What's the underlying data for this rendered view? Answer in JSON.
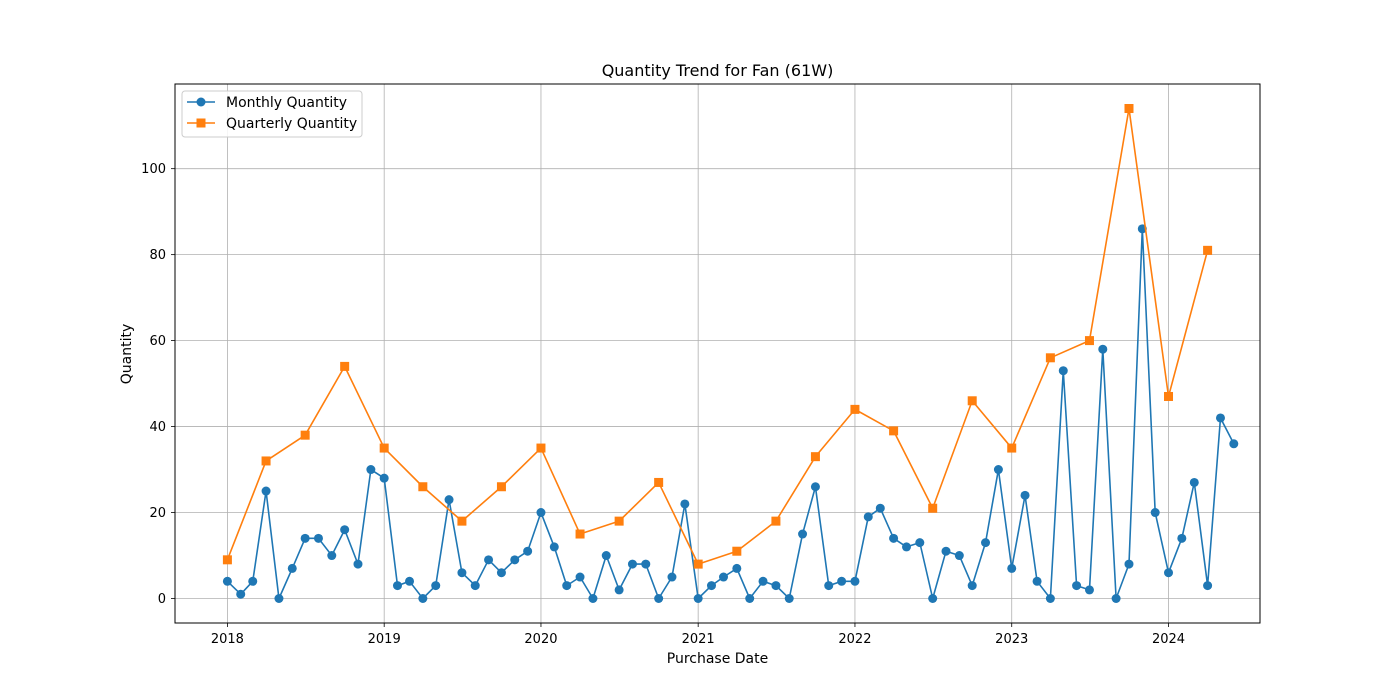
{
  "chart_data": {
    "type": "line",
    "title": "Quantity Trend for Fan (61W)",
    "xlabel": "Purchase Date",
    "ylabel": "Quantity",
    "xlim": [
      "2017-09-01",
      "2024-08-01"
    ],
    "ylim": [
      -5.7,
      119.7
    ],
    "x_ticks": [
      "2018",
      "2019",
      "2020",
      "2021",
      "2022",
      "2023",
      "2024"
    ],
    "y_ticks": [
      "0",
      "20",
      "40",
      "60",
      "80",
      "100"
    ],
    "grid": true,
    "legend_position": "top-left",
    "series": [
      {
        "name": "Monthly Quantity",
        "color": "#1f77b4",
        "marker": "circle",
        "points": [
          [
            "2018-01-01",
            4
          ],
          [
            "2018-02-01",
            1
          ],
          [
            "2018-03-01",
            4
          ],
          [
            "2018-04-01",
            25
          ],
          [
            "2018-05-01",
            0
          ],
          [
            "2018-06-01",
            7
          ],
          [
            "2018-07-01",
            14
          ],
          [
            "2018-08-01",
            14
          ],
          [
            "2018-09-01",
            10
          ],
          [
            "2018-10-01",
            16
          ],
          [
            "2018-11-01",
            8
          ],
          [
            "2018-12-01",
            30
          ],
          [
            "2019-01-01",
            28
          ],
          [
            "2019-02-01",
            3
          ],
          [
            "2019-03-01",
            4
          ],
          [
            "2019-04-01",
            0
          ],
          [
            "2019-05-01",
            3
          ],
          [
            "2019-06-01",
            23
          ],
          [
            "2019-07-01",
            6
          ],
          [
            "2019-08-01",
            3
          ],
          [
            "2019-09-01",
            9
          ],
          [
            "2019-10-01",
            6
          ],
          [
            "2019-11-01",
            9
          ],
          [
            "2019-12-01",
            11
          ],
          [
            "2020-01-01",
            20
          ],
          [
            "2020-02-01",
            12
          ],
          [
            "2020-03-01",
            3
          ],
          [
            "2020-04-01",
            5
          ],
          [
            "2020-05-01",
            0
          ],
          [
            "2020-06-01",
            10
          ],
          [
            "2020-07-01",
            2
          ],
          [
            "2020-08-01",
            8
          ],
          [
            "2020-09-01",
            8
          ],
          [
            "2020-10-01",
            0
          ],
          [
            "2020-11-01",
            5
          ],
          [
            "2020-12-01",
            22
          ],
          [
            "2021-01-01",
            0
          ],
          [
            "2021-02-01",
            3
          ],
          [
            "2021-03-01",
            5
          ],
          [
            "2021-04-01",
            7
          ],
          [
            "2021-05-01",
            0
          ],
          [
            "2021-06-01",
            4
          ],
          [
            "2021-07-01",
            3
          ],
          [
            "2021-08-01",
            0
          ],
          [
            "2021-09-01",
            15
          ],
          [
            "2021-10-01",
            26
          ],
          [
            "2021-11-01",
            3
          ],
          [
            "2021-12-01",
            4
          ],
          [
            "2022-01-01",
            4
          ],
          [
            "2022-02-01",
            19
          ],
          [
            "2022-03-01",
            21
          ],
          [
            "2022-04-01",
            14
          ],
          [
            "2022-05-01",
            12
          ],
          [
            "2022-06-01",
            13
          ],
          [
            "2022-07-01",
            0
          ],
          [
            "2022-08-01",
            11
          ],
          [
            "2022-09-01",
            10
          ],
          [
            "2022-10-01",
            3
          ],
          [
            "2022-11-01",
            13
          ],
          [
            "2022-12-01",
            30
          ],
          [
            "2023-01-01",
            7
          ],
          [
            "2023-02-01",
            24
          ],
          [
            "2023-03-01",
            4
          ],
          [
            "2023-04-01",
            0
          ],
          [
            "2023-05-01",
            53
          ],
          [
            "2023-06-01",
            3
          ],
          [
            "2023-07-01",
            2
          ],
          [
            "2023-08-01",
            58
          ],
          [
            "2023-09-01",
            0
          ],
          [
            "2023-10-01",
            8
          ],
          [
            "2023-11-01",
            86
          ],
          [
            "2023-12-01",
            20
          ],
          [
            "2024-01-01",
            6
          ],
          [
            "2024-02-01",
            14
          ],
          [
            "2024-03-01",
            27
          ],
          [
            "2024-04-01",
            3
          ],
          [
            "2024-05-01",
            42
          ],
          [
            "2024-06-01",
            36
          ]
        ]
      },
      {
        "name": "Quarterly Quantity",
        "color": "#ff7f0e",
        "marker": "square",
        "points": [
          [
            "2018-01-01",
            9
          ],
          [
            "2018-04-01",
            32
          ],
          [
            "2018-07-01",
            38
          ],
          [
            "2018-10-01",
            54
          ],
          [
            "2019-01-01",
            35
          ],
          [
            "2019-04-01",
            26
          ],
          [
            "2019-07-01",
            18
          ],
          [
            "2019-10-01",
            26
          ],
          [
            "2020-01-01",
            35
          ],
          [
            "2020-04-01",
            15
          ],
          [
            "2020-07-01",
            18
          ],
          [
            "2020-10-01",
            27
          ],
          [
            "2021-01-01",
            8
          ],
          [
            "2021-04-01",
            11
          ],
          [
            "2021-07-01",
            18
          ],
          [
            "2021-10-01",
            33
          ],
          [
            "2022-01-01",
            44
          ],
          [
            "2022-04-01",
            39
          ],
          [
            "2022-07-01",
            21
          ],
          [
            "2022-10-01",
            46
          ],
          [
            "2023-01-01",
            35
          ],
          [
            "2023-04-01",
            56
          ],
          [
            "2023-07-01",
            60
          ],
          [
            "2023-10-01",
            114
          ],
          [
            "2024-01-01",
            47
          ],
          [
            "2024-04-01",
            81
          ]
        ]
      }
    ]
  }
}
